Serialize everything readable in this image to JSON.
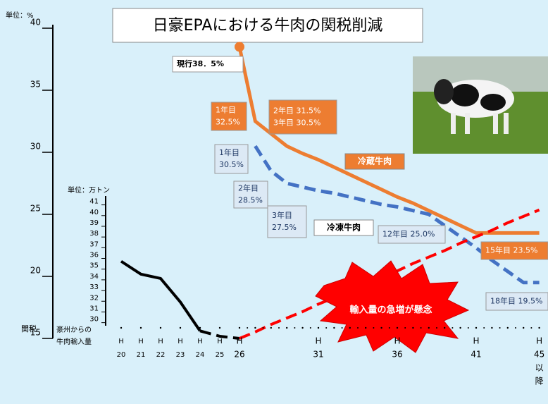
{
  "chart_data": {
    "type": "line",
    "title": "日豪EPAにおける牛肉の関税削減",
    "y_unit_label": "単位：%",
    "y_axis_label": "関税",
    "y2_unit_label": "単位：万トン",
    "y2_axis_label": [
      "豪州からの",
      "牛肉輸入量"
    ],
    "categories": [
      [
        "H",
        "20"
      ],
      [
        "H",
        "21"
      ],
      [
        "H",
        "22"
      ],
      [
        "H",
        "23"
      ],
      [
        "H",
        "24"
      ],
      [
        "H",
        "25"
      ],
      [
        "H",
        "26"
      ],
      null,
      null,
      null,
      null,
      [
        "H",
        "31"
      ],
      null,
      null,
      null,
      null,
      [
        "H",
        "36"
      ],
      null,
      null,
      null,
      null,
      [
        "H",
        "41"
      ],
      null,
      null,
      null,
      [
        "H",
        "45",
        "以",
        "降"
      ]
    ],
    "ylim": [
      15,
      40
    ],
    "yticks": [
      15,
      20,
      25,
      30,
      35,
      40
    ],
    "y2lim": [
      28,
      41.5
    ],
    "y2ticks": [
      30,
      31,
      32,
      33,
      34,
      35,
      36,
      37,
      38,
      39,
      40,
      41
    ],
    "series": [
      {
        "name": "冷蔵牛肉",
        "color": "#ed7d31",
        "values": [
          null,
          null,
          null,
          null,
          null,
          null,
          38.5,
          32.5,
          31.5,
          30.5,
          29.9,
          29.4,
          28.8,
          28.2,
          27.6,
          27.0,
          26.4,
          25.9,
          25.3,
          24.7,
          24.1,
          23.5,
          23.5,
          23.5,
          23.5,
          23.5
        ]
      },
      {
        "name": "冷凍牛肉",
        "color": "#4472c4",
        "dashed": true,
        "values": [
          null,
          null,
          null,
          null,
          null,
          null,
          null,
          30.5,
          28.5,
          27.5,
          27.2,
          26.9,
          26.7,
          26.4,
          26.1,
          25.8,
          25.6,
          25.3,
          25.0,
          24.1,
          23.2,
          22.3,
          21.3,
          20.4,
          19.5,
          19.5
        ]
      },
      {
        "color": "#000000",
        "axis": "y2",
        "values": [
          35.4,
          34.2,
          33.8,
          31.6,
          28.9,
          null,
          null,
          null,
          null,
          null,
          null,
          null,
          null,
          null,
          null,
          null,
          null,
          null,
          null,
          null,
          null,
          null,
          null,
          null,
          null,
          null
        ]
      },
      {
        "color": "#000000",
        "axis": "y2",
        "dashed": true,
        "values": [
          null,
          null,
          null,
          null,
          28.9,
          28.4,
          28.2,
          null,
          null,
          null,
          null,
          null,
          null,
          null,
          null,
          null,
          null,
          null,
          null,
          null,
          null,
          null,
          null,
          null,
          null,
          null
        ]
      },
      {
        "color": "#ff0000",
        "axis": "y2",
        "dashed": true,
        "values": [
          null,
          null,
          null,
          null,
          null,
          null,
          28.2,
          28.8,
          29.5,
          30.1,
          30.7,
          31.4,
          32.0,
          32.6,
          33.3,
          33.9,
          34.5,
          35.2,
          35.8,
          36.4,
          37.1,
          37.7,
          38.3,
          39.0,
          39.6,
          40.2
        ]
      }
    ],
    "annotations": [
      {
        "text": [
          "現行38．5%"
        ],
        "style": "current"
      },
      {
        "text": [
          "1年目",
          "32.5%"
        ],
        "style": "chilled"
      },
      {
        "text": [
          "2年目 31.5%",
          "3年目 30.5%"
        ],
        "style": "chilled"
      },
      {
        "text": [
          "15年目 23.5%"
        ],
        "style": "chilled"
      },
      {
        "text": [
          "1年目",
          "30.5%"
        ],
        "style": "frozen"
      },
      {
        "text": [
          "2年目",
          "28.5%"
        ],
        "style": "frozen"
      },
      {
        "text": [
          "3年目",
          "27.5%"
        ],
        "style": "frozen"
      },
      {
        "text": [
          "12年目 25.0%"
        ],
        "style": "frozen"
      },
      {
        "text": [
          "18年目 19.5%"
        ],
        "style": "frozen"
      }
    ],
    "warning": "輸入量の急増が懸念"
  }
}
